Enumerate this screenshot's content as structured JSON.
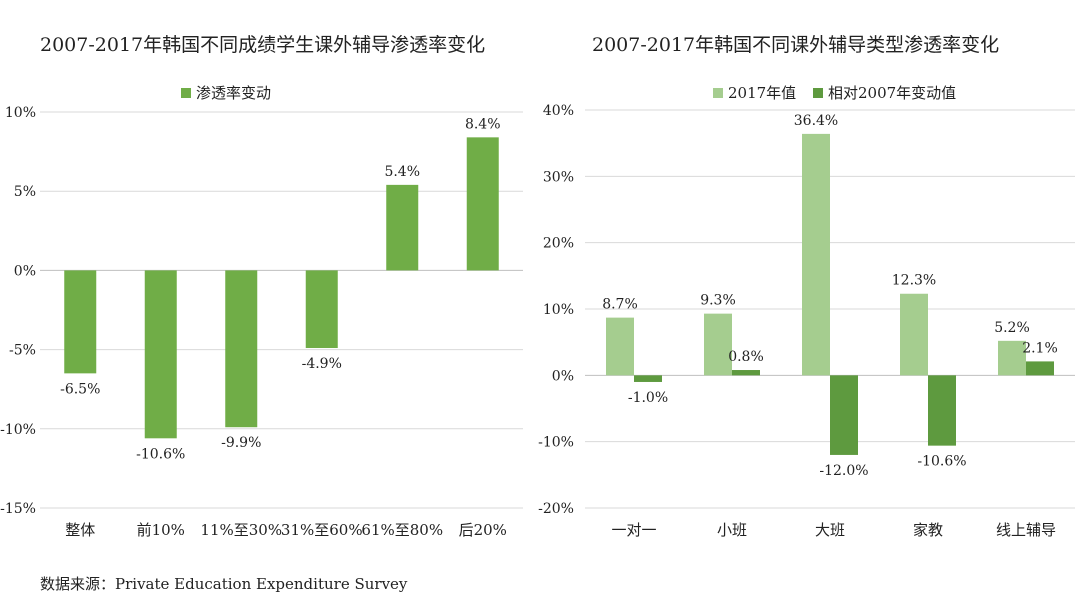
{
  "source": {
    "label": "数据来源：",
    "text": "Private Education Expenditure Survey"
  },
  "colors": {
    "green": "#70ad47",
    "light_green": "#a5cd8f",
    "dark_green": "#5e9a3f",
    "grid": "#d9d9d9",
    "axis": "#bfbfbf"
  },
  "chart_data": [
    {
      "type": "bar",
      "title": "2007-2017年韩国不同成绩学生课外辅导渗透率变化",
      "categories": [
        "整体",
        "前10%",
        "11%至30%",
        "31%至60%",
        "61%至80%",
        "后20%"
      ],
      "series": [
        {
          "name": "渗透率变动",
          "values": [
            -6.5,
            -10.6,
            -9.9,
            -4.9,
            5.4,
            8.4
          ],
          "labels": [
            "-6.5%",
            "-10.6%",
            "-9.9%",
            "-4.9%",
            "5.4%",
            "8.4%"
          ]
        }
      ],
      "ylim": [
        -15,
        10
      ],
      "yticks": [
        10,
        5,
        0,
        -5,
        -10,
        -15
      ],
      "ytick_labels": [
        "10%",
        "5%",
        "0%",
        "-5%",
        "-10%",
        "-15%"
      ],
      "legend": "top",
      "grid": true
    },
    {
      "type": "bar",
      "title": "2007-2017年韩国不同课外辅导类型渗透率变化",
      "categories": [
        "一对一",
        "小班",
        "大班",
        "家教",
        "线上辅导"
      ],
      "series": [
        {
          "name": "2017年值",
          "values": [
            8.7,
            9.3,
            36.4,
            12.3,
            5.2
          ],
          "labels": [
            "8.7%",
            "9.3%",
            "36.4%",
            "12.3%",
            "5.2%"
          ]
        },
        {
          "name": "相对2007年变动值",
          "values": [
            -1.0,
            0.8,
            -12.0,
            -10.6,
            2.1
          ],
          "labels": [
            "-1.0%",
            "0.8%",
            "-12.0%",
            "-10.6%",
            "2.1%"
          ]
        }
      ],
      "ylim": [
        -20,
        40
      ],
      "yticks": [
        40,
        30,
        20,
        10,
        0,
        -10,
        -20
      ],
      "ytick_labels": [
        "40%",
        "30%",
        "20%",
        "10%",
        "0%",
        "-10%",
        "-20%"
      ],
      "legend": "top",
      "grid": true
    }
  ]
}
